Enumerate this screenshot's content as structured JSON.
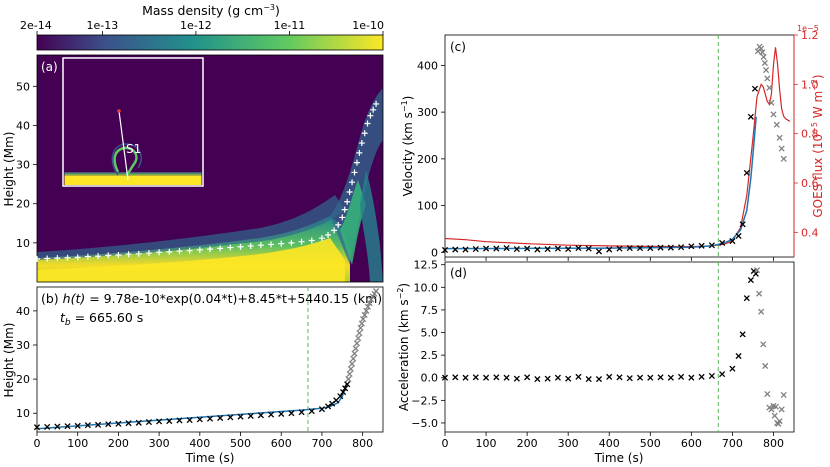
{
  "chart_data": [
    {
      "panel": "colorbar",
      "type": "heatmap",
      "title": "Mass density (g cm⁻³)",
      "title_main": "Mass density (g cm",
      "title_exp": "−3",
      "title_close": ")",
      "scale": "log",
      "tick_labels": [
        "2e-14",
        "1e-13",
        "1e-12",
        "1e-11",
        "1e-10"
      ],
      "tick_values": [
        2e-14,
        1e-13,
        1e-12,
        1e-11,
        1e-10
      ],
      "colors": [
        "#440154",
        "#3b528b",
        "#21918c",
        "#5ec962",
        "#fde725"
      ]
    },
    {
      "panel": "(a)",
      "type": "heatmap",
      "panel_label": "(a)",
      "ylabel": "Height (Mm)",
      "ylim": [
        0,
        58
      ],
      "yticks": [
        10,
        20,
        30,
        40,
        50
      ],
      "inset_label": "S1",
      "tracked_height_markers": [
        [
          0,
          5.9
        ],
        [
          25,
          6.0
        ],
        [
          50,
          6.1
        ],
        [
          75,
          6.2
        ],
        [
          100,
          6.3
        ],
        [
          125,
          6.5
        ],
        [
          150,
          6.6
        ],
        [
          175,
          6.8
        ],
        [
          200,
          6.9
        ],
        [
          225,
          7.1
        ],
        [
          250,
          7.2
        ],
        [
          275,
          7.4
        ],
        [
          300,
          7.6
        ],
        [
          325,
          7.7
        ],
        [
          350,
          7.9
        ],
        [
          375,
          8.0
        ],
        [
          400,
          8.2
        ],
        [
          425,
          8.4
        ],
        [
          450,
          8.6
        ],
        [
          475,
          8.8
        ],
        [
          500,
          9.0
        ],
        [
          525,
          9.2
        ],
        [
          550,
          9.4
        ],
        [
          575,
          9.6
        ],
        [
          600,
          9.8
        ],
        [
          625,
          10.0
        ],
        [
          650,
          10.3
        ],
        [
          675,
          10.6
        ],
        [
          700,
          11.2
        ],
        [
          715,
          12.0
        ],
        [
          730,
          13.2
        ],
        [
          740,
          14.6
        ],
        [
          750,
          16.5
        ],
        [
          756,
          18.5
        ],
        [
          762,
          20.5
        ],
        [
          768,
          23.0
        ],
        [
          774,
          25.5
        ],
        [
          780,
          28.0
        ],
        [
          786,
          30.5
        ],
        [
          792,
          33.0
        ],
        [
          798,
          35.5
        ],
        [
          805,
          38.0
        ],
        [
          812,
          40.5
        ],
        [
          819,
          42.5
        ],
        [
          826,
          44.0
        ],
        [
          833,
          45.5
        ]
      ]
    },
    {
      "panel": "(b)",
      "type": "scatter",
      "formula_lhs": "h(t)",
      "formula_rhs": " = 9.78e-10*exp(0.04*t)+8.45*t+5440.15 (km)",
      "tb_sym": "t",
      "tb_sub": "b",
      "tb_value": " = 665.60 s",
      "xlabel": "Time (s)",
      "ylabel": "Height (Mm)",
      "xlim": [
        0,
        850
      ],
      "ylim": [
        4.5,
        47
      ],
      "xticks": [
        0,
        100,
        200,
        300,
        400,
        500,
        600,
        700,
        800
      ],
      "yticks": [
        10,
        20,
        30,
        40
      ],
      "tb": 665.6,
      "fit_series": {
        "name": "fit",
        "x": [
          0,
          100,
          200,
          300,
          400,
          500,
          600,
          650,
          700,
          720,
          740,
          750,
          760
        ],
        "y": [
          5.44,
          6.29,
          7.13,
          7.98,
          8.82,
          9.67,
          10.51,
          10.93,
          11.44,
          12.0,
          13.1,
          15.0,
          18.6
        ]
      },
      "fit_points": {
        "x": [
          0,
          25,
          50,
          75,
          100,
          125,
          150,
          175,
          200,
          225,
          250,
          275,
          300,
          325,
          350,
          375,
          400,
          425,
          450,
          475,
          500,
          525,
          550,
          575,
          600,
          625,
          650,
          675,
          700,
          715,
          725,
          735,
          745,
          752,
          757,
          762
        ],
        "y": [
          5.9,
          6.0,
          6.1,
          6.2,
          6.3,
          6.5,
          6.6,
          6.8,
          6.9,
          7.1,
          7.2,
          7.4,
          7.6,
          7.7,
          7.9,
          8.0,
          8.2,
          8.4,
          8.6,
          8.8,
          9.0,
          9.2,
          9.4,
          9.6,
          9.8,
          10.0,
          10.3,
          10.6,
          11.2,
          12.0,
          12.8,
          13.8,
          15.0,
          16.2,
          17.3,
          18.5
        ]
      },
      "excluded_points": {
        "x": [
          765,
          768,
          771,
          774,
          777,
          780,
          783,
          786,
          789,
          792,
          795,
          798,
          801,
          805,
          809,
          813,
          817,
          821,
          825,
          829,
          833
        ],
        "y": [
          20.0,
          21.5,
          23.0,
          24.5,
          26.0,
          27.5,
          29.0,
          30.5,
          32.0,
          33.5,
          35.0,
          36.3,
          37.6,
          38.8,
          40.0,
          41.2,
          42.3,
          43.3,
          44.2,
          45.0,
          45.8
        ]
      }
    },
    {
      "panel": "(c)",
      "type": "line",
      "panel_label": "(c)",
      "xlabel": "",
      "ylabel": "Velocity (km s⁻¹)",
      "ylabel_main": "Velocity (km s",
      "ylabel_exp": "−1",
      "ylabel_close": ")",
      "y2label_main": "GOES flux (10",
      "y2label_exp": "−5",
      "y2label_close": " W m",
      "y2label_exp2": "−2",
      "y2label_end": ")",
      "y2_offset_label": "1e−5",
      "xlim": [
        0,
        850
      ],
      "ylim": [
        -10,
        465
      ],
      "y2lim": [
        0.3,
        1.2
      ],
      "xticks": [
        0,
        100,
        200,
        300,
        400,
        500,
        600,
        700,
        800
      ],
      "yticks": [
        0,
        100,
        200,
        300,
        400
      ],
      "y2ticks": [
        0.4,
        0.6,
        0.8,
        1.0,
        1.2
      ],
      "tb": 665.6,
      "fit_velocity": {
        "x": [
          0,
          200,
          400,
          600,
          650,
          680,
          700,
          720,
          735,
          745,
          752,
          758
        ],
        "y": [
          8,
          8.5,
          9,
          11,
          14,
          20,
          28,
          48,
          90,
          160,
          230,
          290
        ]
      },
      "velocity_points": {
        "x": [
          0,
          25,
          50,
          75,
          100,
          125,
          150,
          175,
          200,
          225,
          250,
          275,
          300,
          325,
          350,
          375,
          400,
          425,
          450,
          475,
          500,
          525,
          550,
          575,
          600,
          625,
          650,
          675,
          700,
          715,
          725,
          735,
          745,
          755
        ],
        "y": [
          5,
          6,
          6,
          7,
          8,
          8,
          9,
          7,
          8,
          6,
          7,
          8,
          7,
          9,
          8,
          2,
          6,
          8,
          9,
          9,
          9,
          10,
          10,
          11,
          13,
          14,
          15,
          20,
          24,
          35,
          60,
          170,
          290,
          350
        ]
      },
      "velocity_excluded": {
        "x": [
          762,
          766,
          770,
          773,
          776,
          779,
          782,
          785,
          790,
          795,
          800,
          808,
          815,
          820,
          825
        ],
        "y": [
          430,
          440,
          436,
          428,
          418,
          405,
          390,
          372,
          352,
          320,
          295,
          273,
          245,
          222,
          200
        ]
      },
      "goes_flux": {
        "name": "GOES flux",
        "x": [
          0,
          50,
          100,
          200,
          300,
          400,
          500,
          600,
          650,
          680,
          700,
          720,
          735,
          750,
          760,
          770,
          775,
          780,
          785,
          790,
          795,
          800,
          805,
          810,
          815,
          820,
          825,
          830,
          835,
          840
        ],
        "y": [
          0.375,
          0.37,
          0.362,
          0.354,
          0.348,
          0.345,
          0.343,
          0.342,
          0.345,
          0.352,
          0.365,
          0.42,
          0.55,
          0.78,
          0.95,
          1.0,
          0.99,
          0.96,
          0.93,
          0.92,
          0.96,
          1.08,
          1.15,
          1.08,
          0.98,
          0.9,
          0.87,
          0.86,
          0.855,
          0.85
        ]
      }
    },
    {
      "panel": "(d)",
      "type": "scatter",
      "panel_label": "(d)",
      "xlabel": "Time (s)",
      "ylabel": "Acceleration (km s⁻²)",
      "ylabel_main": "Acceleration (km s",
      "ylabel_exp": "−2",
      "ylabel_close": ")",
      "xlim": [
        0,
        850
      ],
      "ylim": [
        -6,
        12.8
      ],
      "xticks": [
        0,
        100,
        200,
        300,
        400,
        500,
        600,
        700,
        800
      ],
      "yticks": [
        -5.0,
        -2.5,
        0.0,
        2.5,
        5.0,
        7.5,
        10.0,
        12.5
      ],
      "ytick_labels": [
        "−5.0",
        "−2.5",
        "0.0",
        "2.5",
        "5.0",
        "7.5",
        "10.0",
        "12.5"
      ],
      "tb": 665.6,
      "accel_points": {
        "x": [
          0,
          25,
          50,
          75,
          100,
          125,
          150,
          175,
          200,
          225,
          250,
          275,
          300,
          325,
          350,
          375,
          400,
          425,
          450,
          475,
          500,
          525,
          550,
          575,
          600,
          625,
          650,
          675,
          700,
          715,
          725,
          735,
          745,
          752,
          757
        ],
        "y": [
          0.0,
          0.05,
          0.0,
          0.05,
          0.0,
          0.05,
          0.0,
          -0.1,
          0.05,
          -0.15,
          -0.1,
          0.0,
          -0.1,
          0.1,
          -0.15,
          -0.15,
          0.1,
          0.05,
          -0.05,
          0.0,
          0.0,
          0.05,
          0.0,
          0.1,
          0.0,
          0.1,
          0.2,
          0.4,
          1.0,
          2.4,
          4.8,
          8.8,
          10.8,
          11.8,
          11.5
        ]
      },
      "accel_excluded": {
        "x": [
          760,
          765,
          770,
          775,
          780,
          785,
          790,
          795,
          800,
          803,
          806,
          809,
          812,
          815,
          820,
          825
        ],
        "y": [
          11.9,
          9.3,
          7.3,
          3.7,
          1.3,
          -1.8,
          -3.3,
          -3.5,
          -3.1,
          -4.2,
          -3.2,
          -5.0,
          -5.1,
          -4.8,
          -3.5,
          -1.9
        ]
      }
    }
  ]
}
